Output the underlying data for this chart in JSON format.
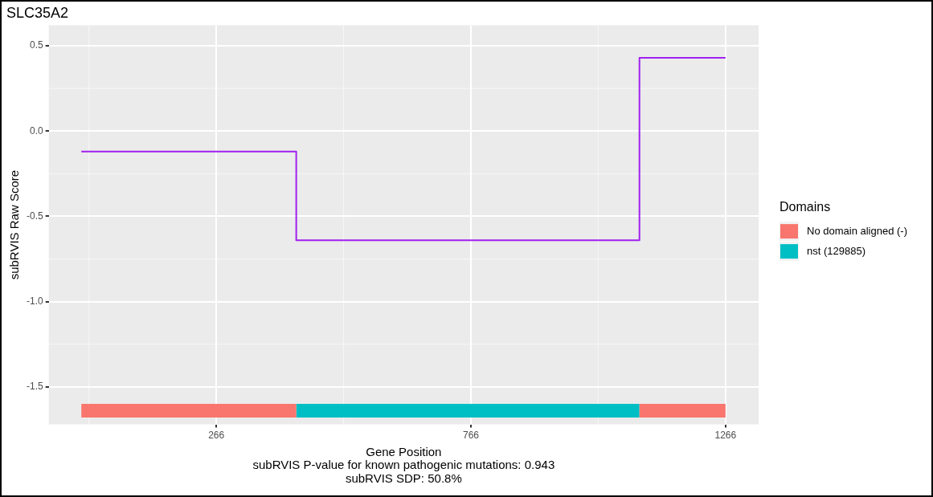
{
  "chart_data": {
    "type": "step",
    "title": "SLC35A2",
    "xlabel": "Gene Position",
    "ylabel": "subRVIS Raw Score",
    "legend_title": "Domains",
    "annotations": [
      "subRVIS P-value for known pathogenic mutations: 0.943",
      "subRVIS SDP: 50.8%"
    ],
    "series": [
      {
        "color": "#a020f0",
        "x": [
          1,
          423,
          1097,
          1266
        ],
        "values": [
          -0.12,
          -0.64,
          0.43,
          0.43
        ]
      },
      {
        "type": "line",
        "name": "No domain aligned (-)",
        "color": "#f8766d",
        "x": [
          1,
          423
        ],
        "values": [
          -1.64,
          -1.64
        ]
      },
      {
        "type": "line",
        "color": "#f8766d",
        "x": [
          1097,
          1266
        ],
        "values": [
          -1.64,
          -1.64
        ]
      },
      {
        "type": "line",
        "name": "nst (129885)",
        "color": "#00bfc4",
        "x": [
          423,
          1097
        ],
        "values": [
          -1.64,
          -1.64
        ]
      }
    ],
    "xlim": [
      -63,
      1331
    ],
    "xticks": [
      266,
      766,
      1266
    ],
    "ylim": [
      -1.72,
      0.62
    ],
    "yticks": [
      {
        "value": -1.5,
        "label": "-1.5"
      },
      {
        "value": -1,
        "label": "-1.0"
      },
      {
        "value": -0.5,
        "label": "-0.5"
      },
      {
        "value": 0,
        "label": "0.0"
      },
      {
        "value": 0.5,
        "label": "0.5"
      }
    ],
    "grid": true,
    "legend": "right",
    "marker": "none"
  }
}
